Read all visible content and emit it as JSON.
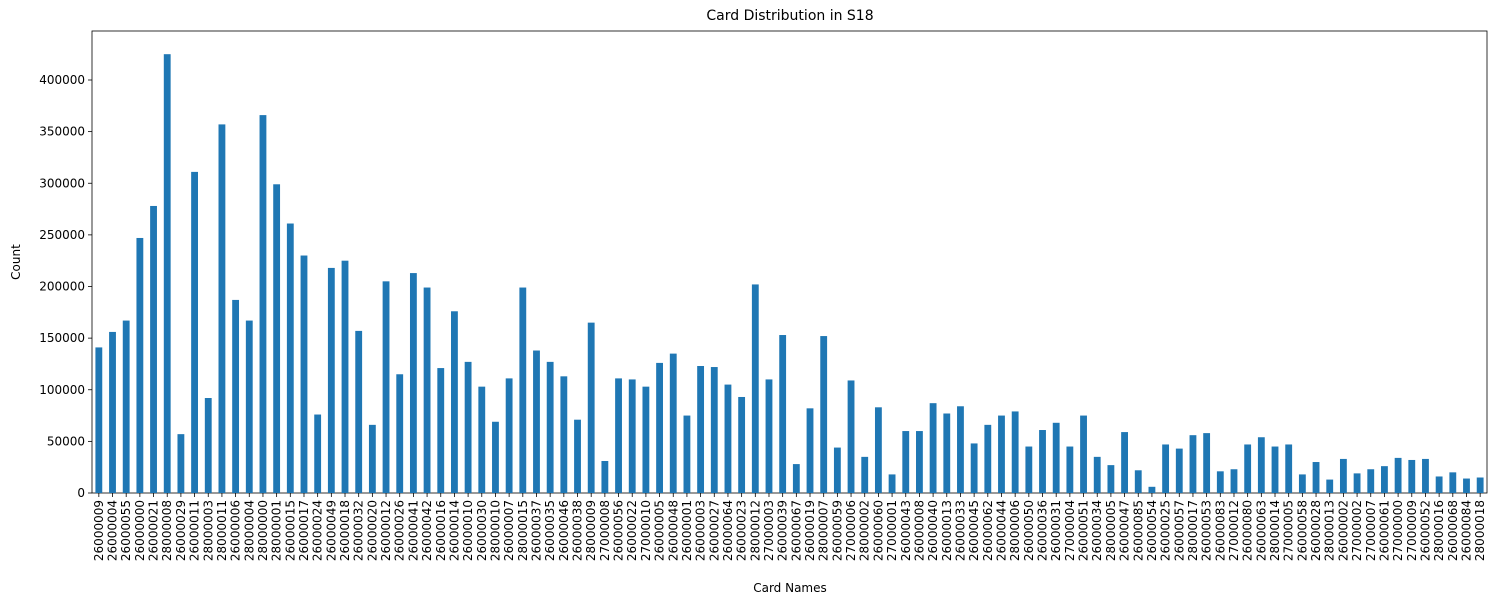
{
  "chart_data": {
    "type": "bar",
    "title": "Card Distribution in S18",
    "xlabel": "Card Names",
    "ylabel": "Count",
    "color": "#1f77b4",
    "categories": [
      "26000009",
      "26000004",
      "26000055",
      "26000000",
      "26000021",
      "28000008",
      "26000029",
      "26000011",
      "28000003",
      "28000011",
      "26000006",
      "28000004",
      "28000000",
      "28000001",
      "26000015",
      "26000017",
      "26000024",
      "26000049",
      "26000018",
      "26000032",
      "26000020",
      "26000012",
      "26000026",
      "26000041",
      "26000042",
      "26000016",
      "26000014",
      "26000010",
      "26000030",
      "28000010",
      "26000007",
      "28000015",
      "26000037",
      "26000035",
      "26000046",
      "26000038",
      "28000009",
      "27000008",
      "26000056",
      "26000022",
      "27000010",
      "26000005",
      "26000048",
      "26000001",
      "26000003",
      "26000027",
      "26000064",
      "26000023",
      "28000012",
      "27000003",
      "26000039",
      "26000067",
      "26000019",
      "28000007",
      "26000059",
      "27000006",
      "28000002",
      "26000060",
      "27000001",
      "26000043",
      "26000008",
      "26000040",
      "26000013",
      "26000033",
      "26000045",
      "26000062",
      "26000044",
      "28000006",
      "26000050",
      "26000036",
      "26000031",
      "27000004",
      "26000051",
      "26000034",
      "28000005",
      "26000047",
      "26000085",
      "26000054",
      "26000025",
      "26000057",
      "28000017",
      "26000053",
      "26000083",
      "27000012",
      "26000080",
      "26000063",
      "28000014",
      "27000005",
      "26000058",
      "26000028",
      "28000013",
      "26000002",
      "27000002",
      "27000007",
      "26000061",
      "27000000",
      "27000009",
      "26000052",
      "28000016",
      "26000068",
      "26000084",
      "28000018"
    ],
    "values": [
      141000,
      156000,
      167000,
      247000,
      278000,
      425000,
      57000,
      311000,
      92000,
      357000,
      187000,
      167000,
      366000,
      299000,
      261000,
      230000,
      76000,
      218000,
      225000,
      157000,
      66000,
      205000,
      115000,
      213000,
      199000,
      121000,
      176000,
      127000,
      103000,
      69000,
      111000,
      199000,
      138000,
      127000,
      113000,
      71000,
      165000,
      31000,
      111000,
      110000,
      103000,
      126000,
      135000,
      75000,
      123000,
      122000,
      105000,
      93000,
      202000,
      110000,
      153000,
      28000,
      82000,
      152000,
      44000,
      109000,
      35000,
      83000,
      18000,
      60000,
      60000,
      87000,
      77000,
      84000,
      48000,
      66000,
      75000,
      79000,
      45000,
      61000,
      68000,
      45000,
      75000,
      35000,
      27000,
      59000,
      22000,
      6000,
      47000,
      43000,
      56000,
      58000,
      21000,
      23000,
      47000,
      54000,
      45000,
      47000,
      18000,
      30000,
      13000,
      33000,
      19000,
      23000,
      26000,
      34000,
      32000,
      33000,
      16000,
      20000,
      14000,
      15000
    ],
    "ylim": [
      0,
      447458
    ],
    "yticks": [
      0,
      50000,
      100000,
      150000,
      200000,
      250000,
      300000,
      350000,
      400000
    ]
  }
}
